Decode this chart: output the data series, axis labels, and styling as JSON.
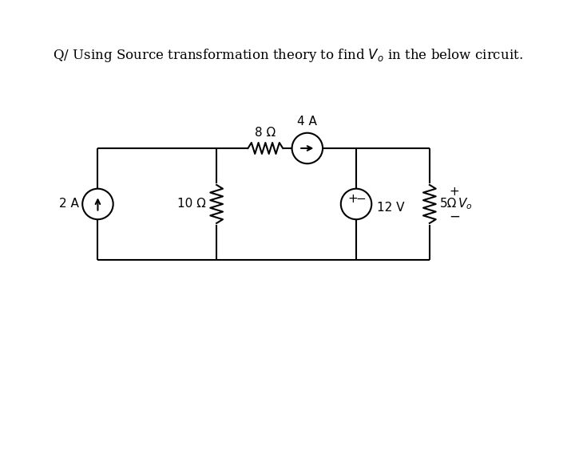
{
  "title": "Q/ Using Source transformation theory to find $V_o$ in the below circuit.",
  "bg_color": "#ffffff",
  "line_color": "#000000",
  "line_width": 1.5,
  "current_source_2A_label": "2 A",
  "resistor_10_label": "10 Ω",
  "resistor_8_label": "8 Ω",
  "current_source_4A_label": "4 A",
  "voltage_source_label": "12 V",
  "resistor_5_label": "5Ω",
  "vo_label": "$V_o$",
  "plus_label": "+",
  "minus_label": "−"
}
